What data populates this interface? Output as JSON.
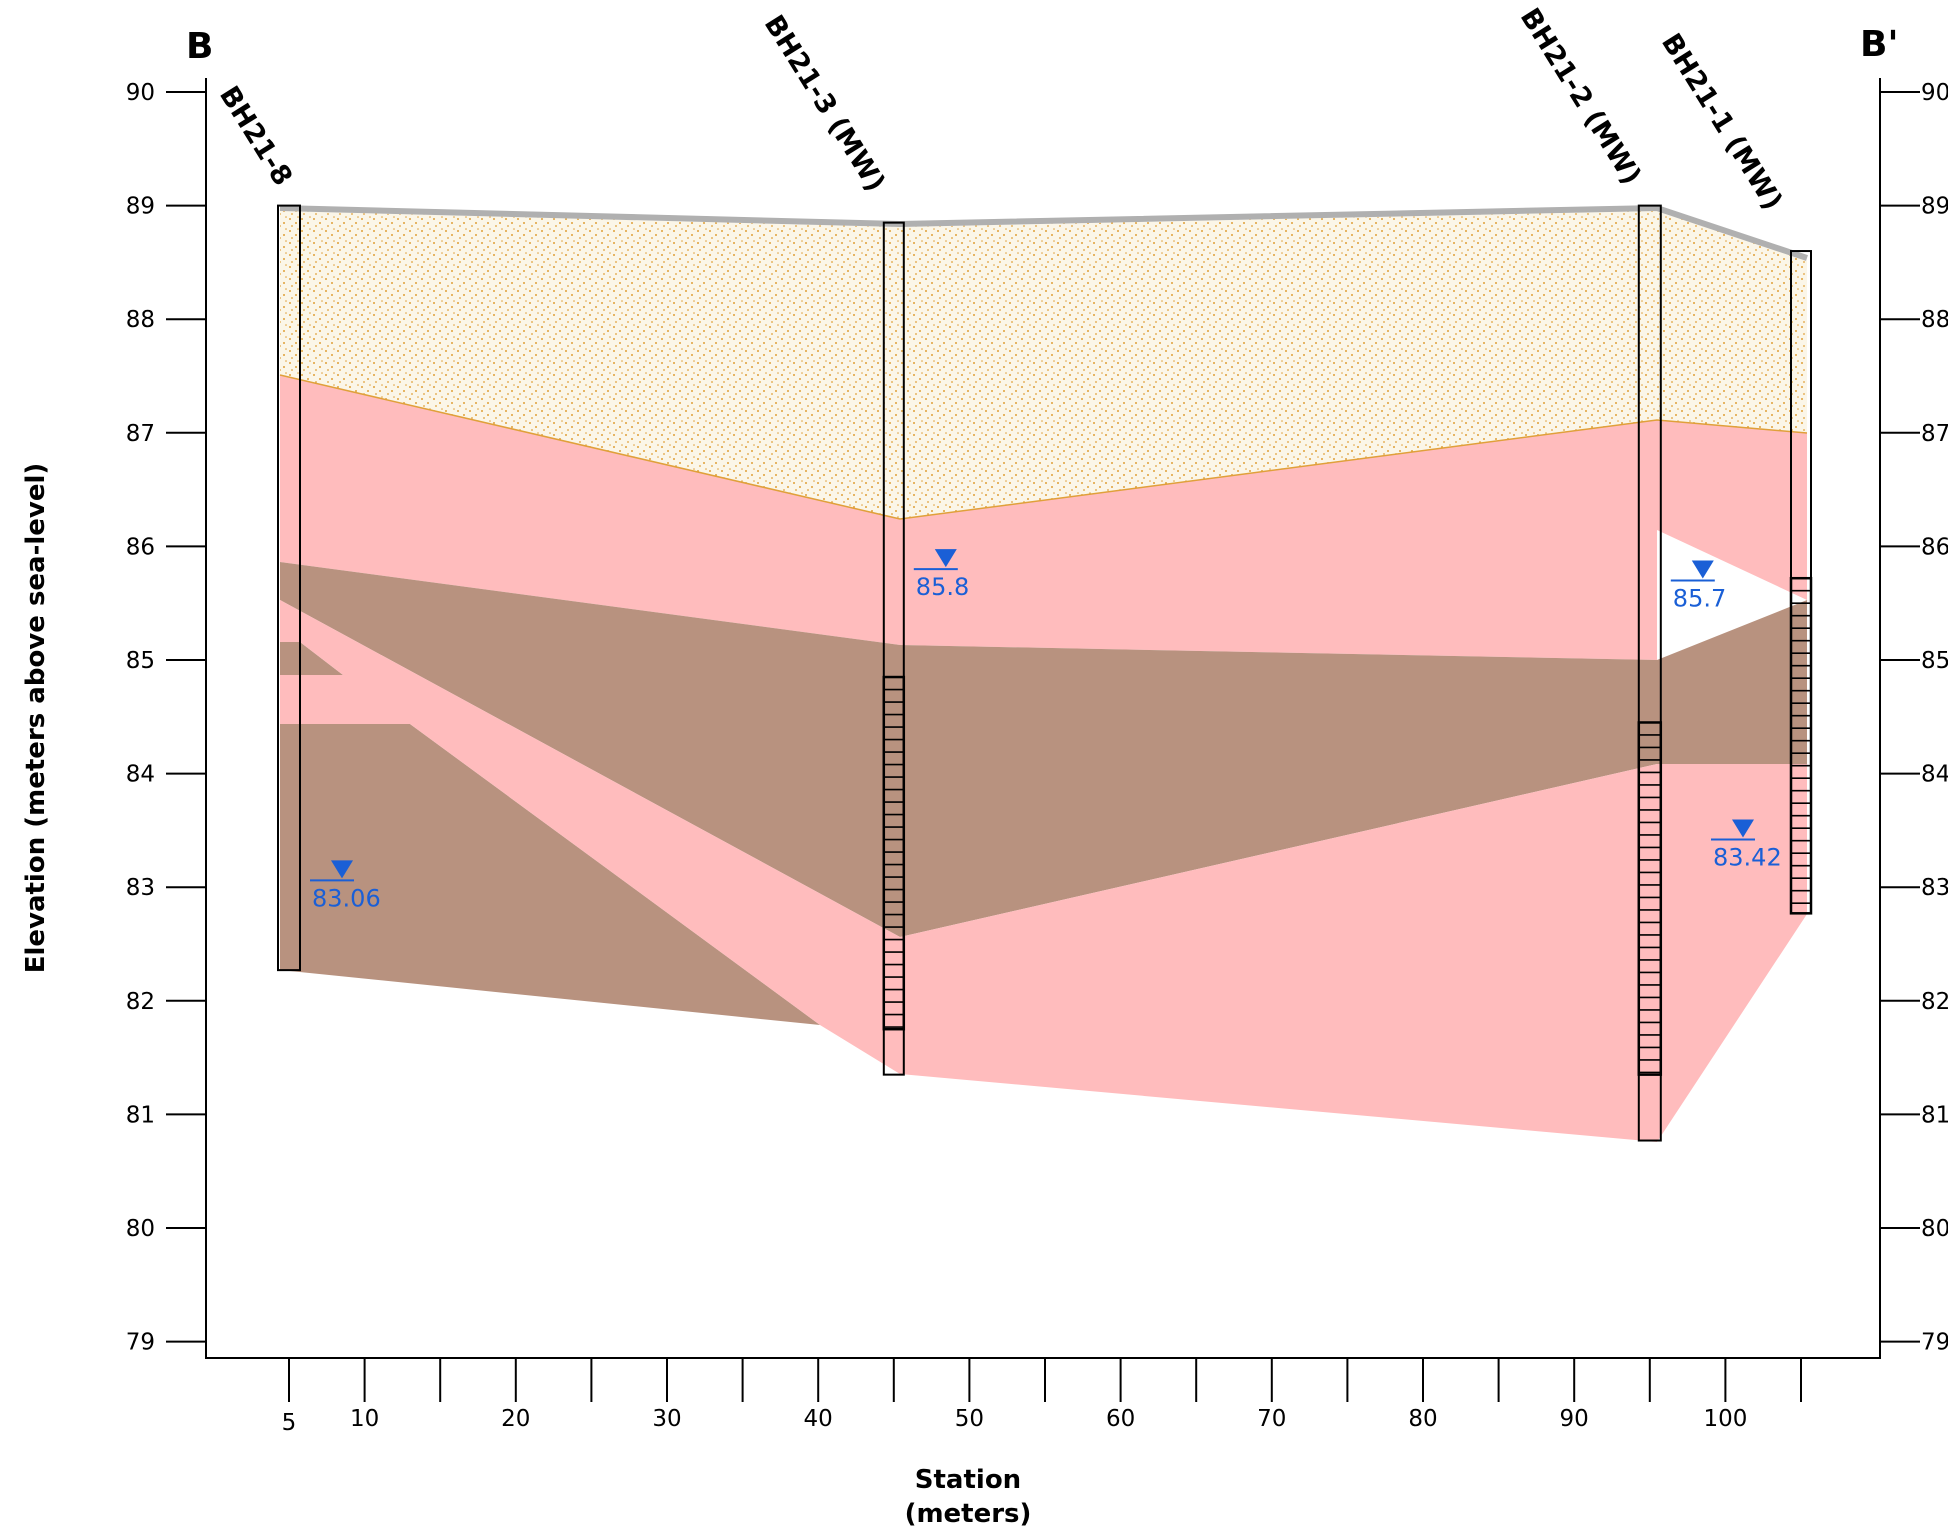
{
  "section": {
    "start_label": "B",
    "end_label": "B'",
    "y_axis_title": "Elevation (meters above sea-level)",
    "x_axis_title_line1": "Station",
    "x_axis_title_line2": "(meters)",
    "elevation_ticks": [
      "90",
      "89",
      "88",
      "87",
      "86",
      "85",
      "84",
      "83",
      "82",
      "81",
      "80",
      "79"
    ],
    "station_ticks": [
      "5",
      "10",
      "20",
      "30",
      "40",
      "50",
      "60",
      "70",
      "80",
      "90",
      "100"
    ]
  },
  "colors": {
    "sand": "#fbf6e8",
    "sand_dots": "#e0a03a",
    "pink": "#ffbcbd",
    "brown": "#b8927f",
    "surface": "#b0b0b0",
    "water": "#1a5fd6"
  },
  "boreholes": [
    {
      "name": "BH21-8",
      "station": 5,
      "top": 89.0,
      "bottom": 82.27,
      "screen": null,
      "water_level": "83.06"
    },
    {
      "name": "BH21-3 (MW)",
      "station": 45,
      "top": 88.85,
      "bottom": 81.35,
      "screen": [
        84.85,
        81.75
      ],
      "water_level": "85.8"
    },
    {
      "name": "BH21-2 (MW)",
      "station": 95,
      "top": 89.0,
      "bottom": 80.77,
      "screen": [
        84.45,
        81.35
      ],
      "water_level": "85.7"
    },
    {
      "name": "BH21-1 (MW)",
      "station": 105,
      "top": 88.6,
      "bottom": 82.77,
      "screen": [
        85.72,
        82.77
      ],
      "water_level": "83.42"
    }
  ]
}
